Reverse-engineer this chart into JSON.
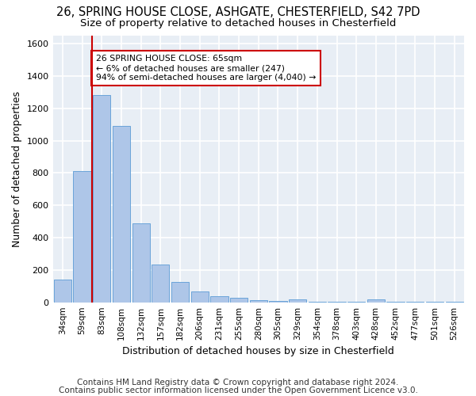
{
  "title_line1": "26, SPRING HOUSE CLOSE, ASHGATE, CHESTERFIELD, S42 7PD",
  "title_line2": "Size of property relative to detached houses in Chesterfield",
  "xlabel": "Distribution of detached houses by size in Chesterfield",
  "ylabel": "Number of detached properties",
  "footnote1": "Contains HM Land Registry data © Crown copyright and database right 2024.",
  "footnote2": "Contains public sector information licensed under the Open Government Licence v3.0.",
  "annotation_line1": "26 SPRING HOUSE CLOSE: 65sqm",
  "annotation_line2": "← 6% of detached houses are smaller (247)",
  "annotation_line3": "94% of semi-detached houses are larger (4,040) →",
  "bar_labels": [
    "34sqm",
    "59sqm",
    "83sqm",
    "108sqm",
    "132sqm",
    "157sqm",
    "182sqm",
    "206sqm",
    "231sqm",
    "255sqm",
    "280sqm",
    "305sqm",
    "329sqm",
    "354sqm",
    "378sqm",
    "403sqm",
    "428sqm",
    "452sqm",
    "477sqm",
    "501sqm",
    "526sqm"
  ],
  "bar_values": [
    140,
    810,
    1280,
    1090,
    490,
    235,
    125,
    65,
    38,
    28,
    15,
    8,
    18,
    2,
    2,
    2,
    18,
    2,
    2,
    2,
    2
  ],
  "bar_color": "#aec6e8",
  "bar_edge_color": "#5b9bd5",
  "vline_color": "#cc0000",
  "vline_x": 1.5,
  "ylim": [
    0,
    1650
  ],
  "yticks": [
    0,
    200,
    400,
    600,
    800,
    1000,
    1200,
    1400,
    1600
  ],
  "bg_color": "#e8eef5",
  "grid_color": "#ffffff",
  "annotation_box_color": "#cc0000",
  "fig_bg_color": "#ffffff"
}
